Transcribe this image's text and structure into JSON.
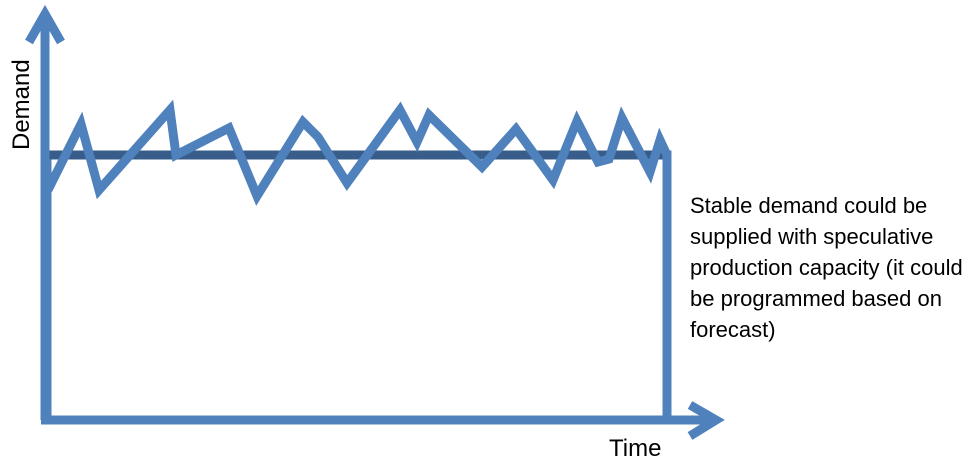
{
  "diagram": {
    "ylabel": "Demand",
    "xlabel": "Time",
    "annotation": "Stable demand could be supplied with speculative production capacity (it could be programmed based on forecast)",
    "colors": {
      "axis": "#4F81BD",
      "capacity": "#385D8A",
      "demand": "#4F81BD",
      "text": "#000000"
    }
  }
}
